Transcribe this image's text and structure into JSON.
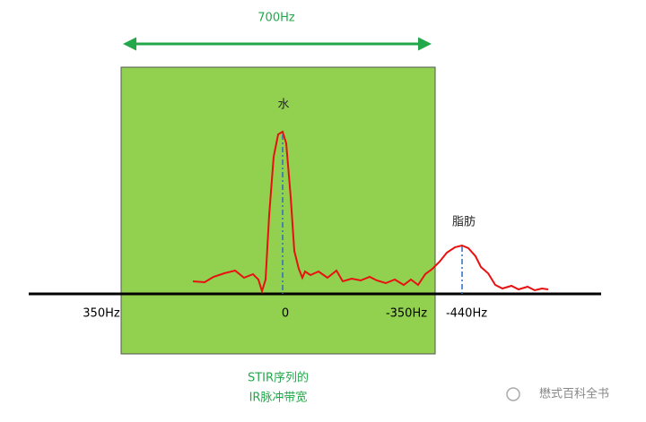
{
  "bandwidth_label": "700Hz",
  "peaks": [
    {
      "label": "水"
    },
    {
      "label": "脂肪"
    }
  ],
  "axis_labels": [
    "350Hz",
    "0",
    "-350Hz",
    "-440Hz"
  ],
  "caption": [
    "STIR序列的",
    "IR脉冲带宽"
  ],
  "watermark": "懋式百科全书"
}
